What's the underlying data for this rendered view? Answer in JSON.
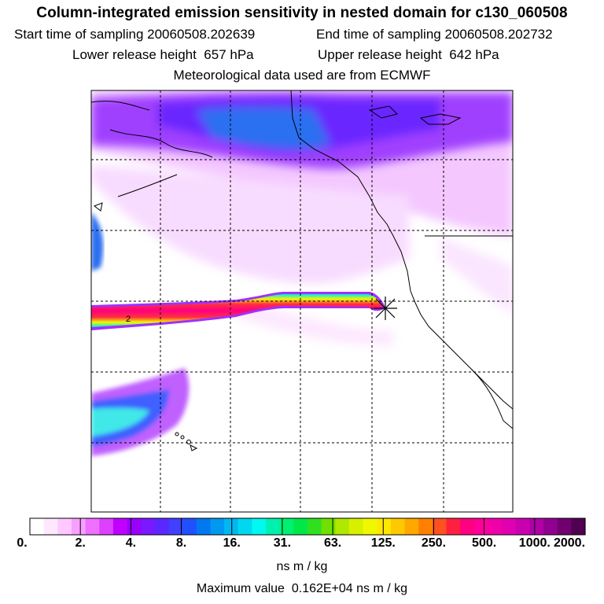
{
  "header": {
    "title": "Column-integrated emission sensitivity in nested domain for c130_060508",
    "start_label": "Start time of sampling",
    "start_value": "20060508.202639",
    "end_label": "End time of sampling",
    "end_value": "20060508.202732",
    "lower_label": "Lower release height",
    "lower_value": "657 hPa",
    "upper_label": "Upper release height",
    "upper_value": "642 hPa",
    "met_text": "Meteorological data used are from ECMWF"
  },
  "map": {
    "plume_label": "2"
  },
  "colorbar": {
    "ticks": [
      "0.",
      "2.",
      "4.",
      "8.",
      "16.",
      "31.",
      "63.",
      "125.",
      "250.",
      "500.",
      "1000.",
      "2000."
    ],
    "colors": [
      "#ffffff",
      "#ffe8ff",
      "#ffc8ff",
      "#f8a0ff",
      "#ee70ff",
      "#dd40ff",
      "#c000ff",
      "#9b00ff",
      "#7a18ff",
      "#5a28ff",
      "#4040ff",
      "#2050ff",
      "#0078f0",
      "#0098f0",
      "#00b8f0",
      "#00d8f0",
      "#00f8f0",
      "#00f0b0",
      "#00f070",
      "#00e848",
      "#30e020",
      "#70e000",
      "#b0e800",
      "#d8f000",
      "#f0f800",
      "#ffe800",
      "#ffc800",
      "#ffa800",
      "#ff8000",
      "#ff5020",
      "#ff2040",
      "#ff0080",
      "#ff0098",
      "#f000a8",
      "#e000b0",
      "#c800b0",
      "#b000a8",
      "#900090",
      "#700070",
      "#500050"
    ],
    "units": "ns m / kg",
    "max_label": "Maximum value",
    "max_value": "0.162E+04",
    "max_units": "ns m / kg"
  }
}
